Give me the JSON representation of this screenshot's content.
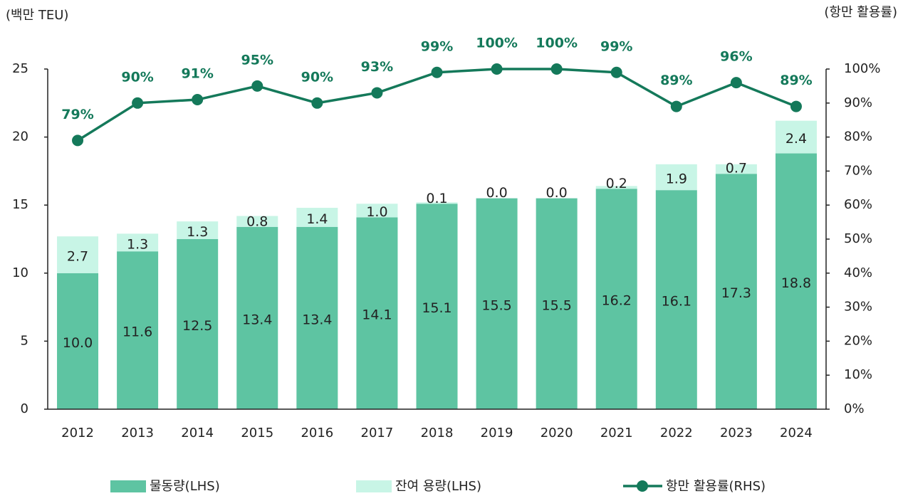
{
  "chart_data": {
    "type": "bar",
    "y_label": "(백만 TEU)",
    "y2_label": "(항만 활용률)",
    "categories": [
      "2012",
      "2013",
      "2014",
      "2015",
      "2016",
      "2017",
      "2018",
      "2019",
      "2020",
      "2021",
      "2022",
      "2023",
      "2024"
    ],
    "series": [
      {
        "name": "물동량(LHS)",
        "color": "#5ec4a2",
        "stacked": true,
        "values": [
          10.0,
          11.6,
          12.5,
          13.4,
          13.4,
          14.1,
          15.1,
          15.5,
          15.5,
          16.2,
          16.1,
          17.3,
          18.8
        ],
        "value_labels": [
          "10.0",
          "11.6",
          "12.5",
          "13.4",
          "13.4",
          "14.1",
          "15.1",
          "15.5",
          "15.5",
          "16.2",
          "16.1",
          "17.3",
          "18.8"
        ]
      },
      {
        "name": "잔여 용량(LHS)",
        "color": "#c8f5e6",
        "stacked": true,
        "values": [
          2.7,
          1.3,
          1.3,
          0.8,
          1.4,
          1.0,
          0.1,
          0.0,
          0.0,
          0.2,
          1.9,
          0.7,
          2.4
        ],
        "value_labels": [
          "2.7",
          "1.3",
          "1.3",
          "0.8",
          "1.4",
          "1.0",
          "0.1",
          "0.0",
          "0.0",
          "0.2",
          "1.9",
          "0.7",
          "2.4"
        ]
      },
      {
        "name": "항만 활용률(RHS)",
        "color": "#14795a",
        "type": "line",
        "axis": "y2",
        "values": [
          79,
          90,
          91,
          95,
          90,
          93,
          99,
          100,
          100,
          99,
          89,
          96,
          89
        ],
        "value_labels": [
          "79%",
          "90%",
          "91%",
          "95%",
          "90%",
          "93%",
          "99%",
          "100%",
          "100%",
          "99%",
          "89%",
          "96%",
          "89%"
        ]
      }
    ],
    "ylim": [
      0,
      25
    ],
    "yticks": [
      0,
      5,
      10,
      15,
      20,
      25
    ],
    "y2lim": [
      0,
      100
    ],
    "y2ticks": [
      {
        "value": 0,
        "label": "0%"
      },
      {
        "value": 10,
        "label": "10%"
      },
      {
        "value": 20,
        "label": "20%"
      },
      {
        "value": 30,
        "label": "30%"
      },
      {
        "value": 40,
        "label": "40%"
      },
      {
        "value": 50,
        "label": "50%"
      },
      {
        "value": 60,
        "label": "60%"
      },
      {
        "value": 70,
        "label": "70%"
      },
      {
        "value": 80,
        "label": "80%"
      },
      {
        "value": 90,
        "label": "90%"
      },
      {
        "value": 100,
        "label": "100%"
      }
    ],
    "legend": "bottom"
  }
}
